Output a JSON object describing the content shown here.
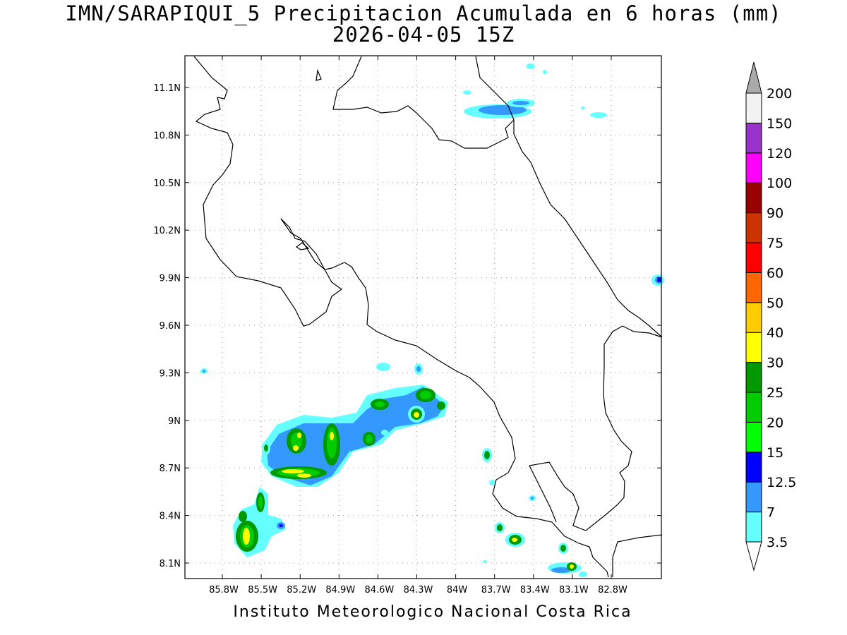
{
  "title": {
    "line1": "IMN/SARAPIQUI_5 Precipitacion Acumulada en 6 horas (mm)",
    "line2": "2026-04-05 15Z"
  },
  "footer": "Instituto Meteorologico Nacional Costa Rica",
  "map": {
    "lon_labels": [
      "85.8W",
      "85.5W",
      "85.2W",
      "84.9W",
      "84.6W",
      "84.3W",
      "84W",
      "83.7W",
      "83.4W",
      "83.1W",
      "82.8W"
    ],
    "lat_labels": [
      "11.1N",
      "10.8N",
      "10.5N",
      "10.2N",
      "9.9N",
      "9.6N",
      "9.3N",
      "9N",
      "8.7N",
      "8.4N",
      "8.1N"
    ],
    "lon_values": [
      -85.8,
      -85.5,
      -85.2,
      -84.9,
      -84.6,
      -84.3,
      -84.0,
      -83.7,
      -83.4,
      -83.1,
      -82.8
    ],
    "lat_values": [
      11.1,
      10.8,
      10.5,
      10.2,
      9.9,
      9.6,
      9.3,
      9.0,
      8.7,
      8.4,
      8.1
    ]
  },
  "colorbar": {
    "levels": [
      "3.5",
      "7",
      "12.5",
      "15",
      "20",
      "25",
      "30",
      "40",
      "50",
      "60",
      "75",
      "90",
      "100",
      "120",
      "150",
      "200"
    ],
    "colors": [
      "#66ffff",
      "#3399ff",
      "#0000ff",
      "#00ff00",
      "#00cc00",
      "#009900",
      "#ffff00",
      "#ffcc00",
      "#ff6600",
      "#ff0000",
      "#cc3300",
      "#990000",
      "#ff00ff",
      "#9933cc",
      "#f2f2f2",
      "#aaaaaa"
    ]
  }
}
